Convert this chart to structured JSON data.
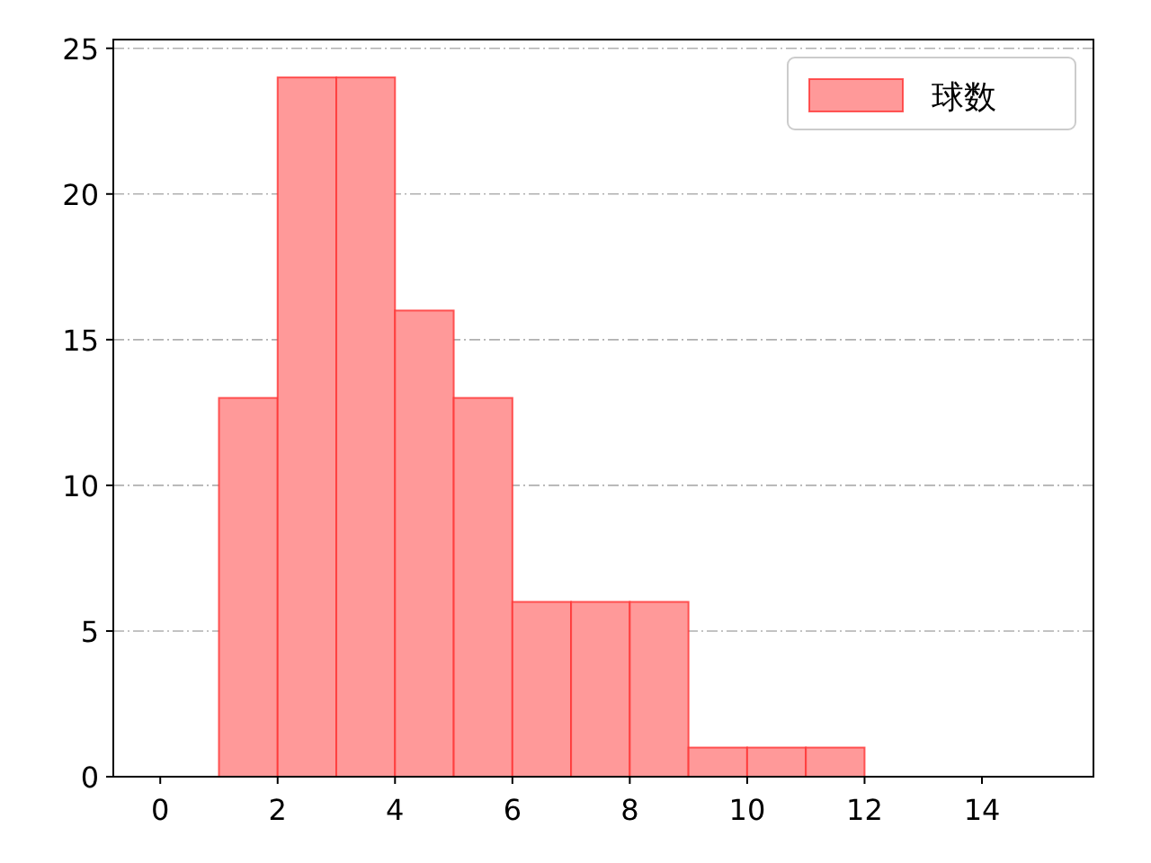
{
  "chart_data": {
    "type": "histogram",
    "bins": [
      1,
      2,
      3,
      4,
      5,
      6,
      7,
      8,
      9,
      10,
      11,
      12
    ],
    "series": [
      {
        "name": "球数",
        "color": "#ff9999",
        "values": [
          13,
          24,
          24,
          16,
          13,
          6,
          6,
          6,
          1,
          1,
          1
        ]
      }
    ],
    "xlim": [
      -0.8,
      15.9
    ],
    "ylim": [
      0,
      25.3
    ],
    "xticks": [
      0,
      2,
      4,
      6,
      8,
      10,
      12,
      14
    ],
    "yticks": [
      0,
      5,
      10,
      15,
      20,
      25
    ],
    "grid": "y",
    "legend": "top right"
  }
}
